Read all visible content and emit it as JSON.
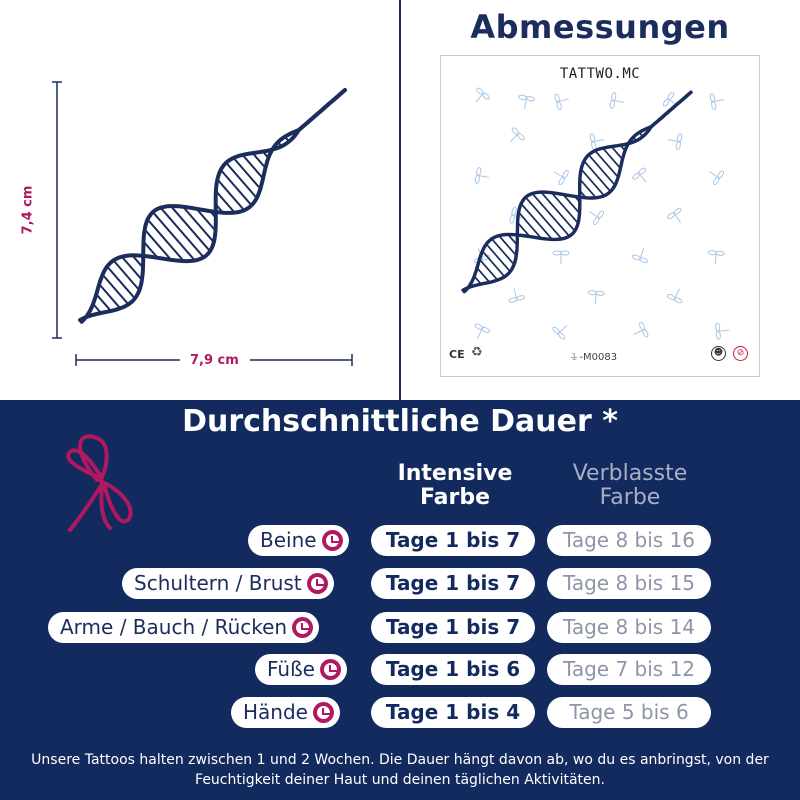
{
  "dimensions": {
    "title": "Abmessungen",
    "height_label": "7,4 cm",
    "width_label": "7,9 cm"
  },
  "card": {
    "brand": "TATTWO.MC",
    "qty": "1",
    "code": "M0083",
    "ce": "CE"
  },
  "duration": {
    "title": "Durchschnittliche Dauer *",
    "col_intense": "Intensive Farbe",
    "col_faded": "Verblasste Farbe",
    "rows": [
      {
        "area": "Beine",
        "intense": "Tage 1 bis 7",
        "faded": "Tage 8 bis 16"
      },
      {
        "area": "Schultern / Brust",
        "intense": "Tage 1 bis 7",
        "faded": "Tage 8 bis 15"
      },
      {
        "area": "Arme / Bauch / Rücken",
        "intense": "Tage 1 bis 7",
        "faded": "Tage 8 bis 14"
      },
      {
        "area": "Füße",
        "intense": "Tage 1 bis 6",
        "faded": "Tage 7 bis 12"
      },
      {
        "area": "Hände",
        "intense": "Tage 1 bis 4",
        "faded": "Tage 5 bis 6"
      }
    ]
  },
  "footer": "Unsere Tattoos halten zwischen 1 und 2 Wochen. Die Dauer hängt davon ab, wo du es anbringst, von der Feuchtigkeit deiner Haut und deinen täglichen Aktivitäten.",
  "colors": {
    "navy": "#132a5e",
    "accent": "#b0185f"
  },
  "icons": [
    "dna-helix-icon",
    "dragonfly-icon",
    "clock-icon",
    "recycle-icon",
    "no-alcohol-icon"
  ]
}
